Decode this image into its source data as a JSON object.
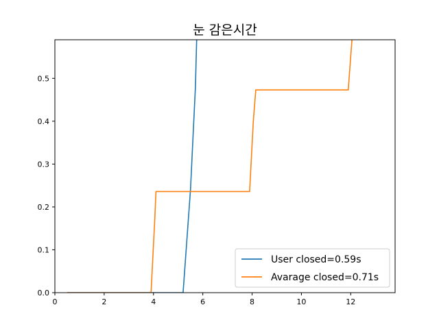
{
  "chart_data": {
    "type": "line",
    "title": "눈 감은시간",
    "xlabel": "",
    "ylabel": "",
    "xlim": [
      0,
      13.8
    ],
    "ylim": [
      0,
      0.59
    ],
    "xticks": [
      0,
      2,
      4,
      6,
      8,
      10,
      12
    ],
    "xtick_labels": [
      "0",
      "2",
      "4",
      "6",
      "8",
      "10",
      "12"
    ],
    "yticks": [
      0.0,
      0.1,
      0.2,
      0.3,
      0.4,
      0.5
    ],
    "ytick_labels": [
      "0.0",
      "0.1",
      "0.2",
      "0.3",
      "0.4",
      "0.5"
    ],
    "grid": false,
    "legend_position": "lower-right",
    "series": [
      {
        "name": "User closed=0.59s",
        "color": "#1f77b4",
        "x": [
          0.5,
          5.2,
          5.35,
          5.5,
          5.6,
          5.7,
          5.75
        ],
        "y": [
          0.0,
          0.0,
          0.12,
          0.24,
          0.36,
          0.48,
          0.59
        ]
      },
      {
        "name": "Avarage closed=0.71s",
        "color": "#ff7f0e",
        "x": [
          0.5,
          3.9,
          4.05,
          4.1,
          7.9,
          8.05,
          8.15,
          11.9,
          12.05
        ],
        "y": [
          0.0,
          0.0,
          0.17,
          0.236,
          0.236,
          0.4,
          0.473,
          0.473,
          0.59
        ]
      }
    ]
  }
}
